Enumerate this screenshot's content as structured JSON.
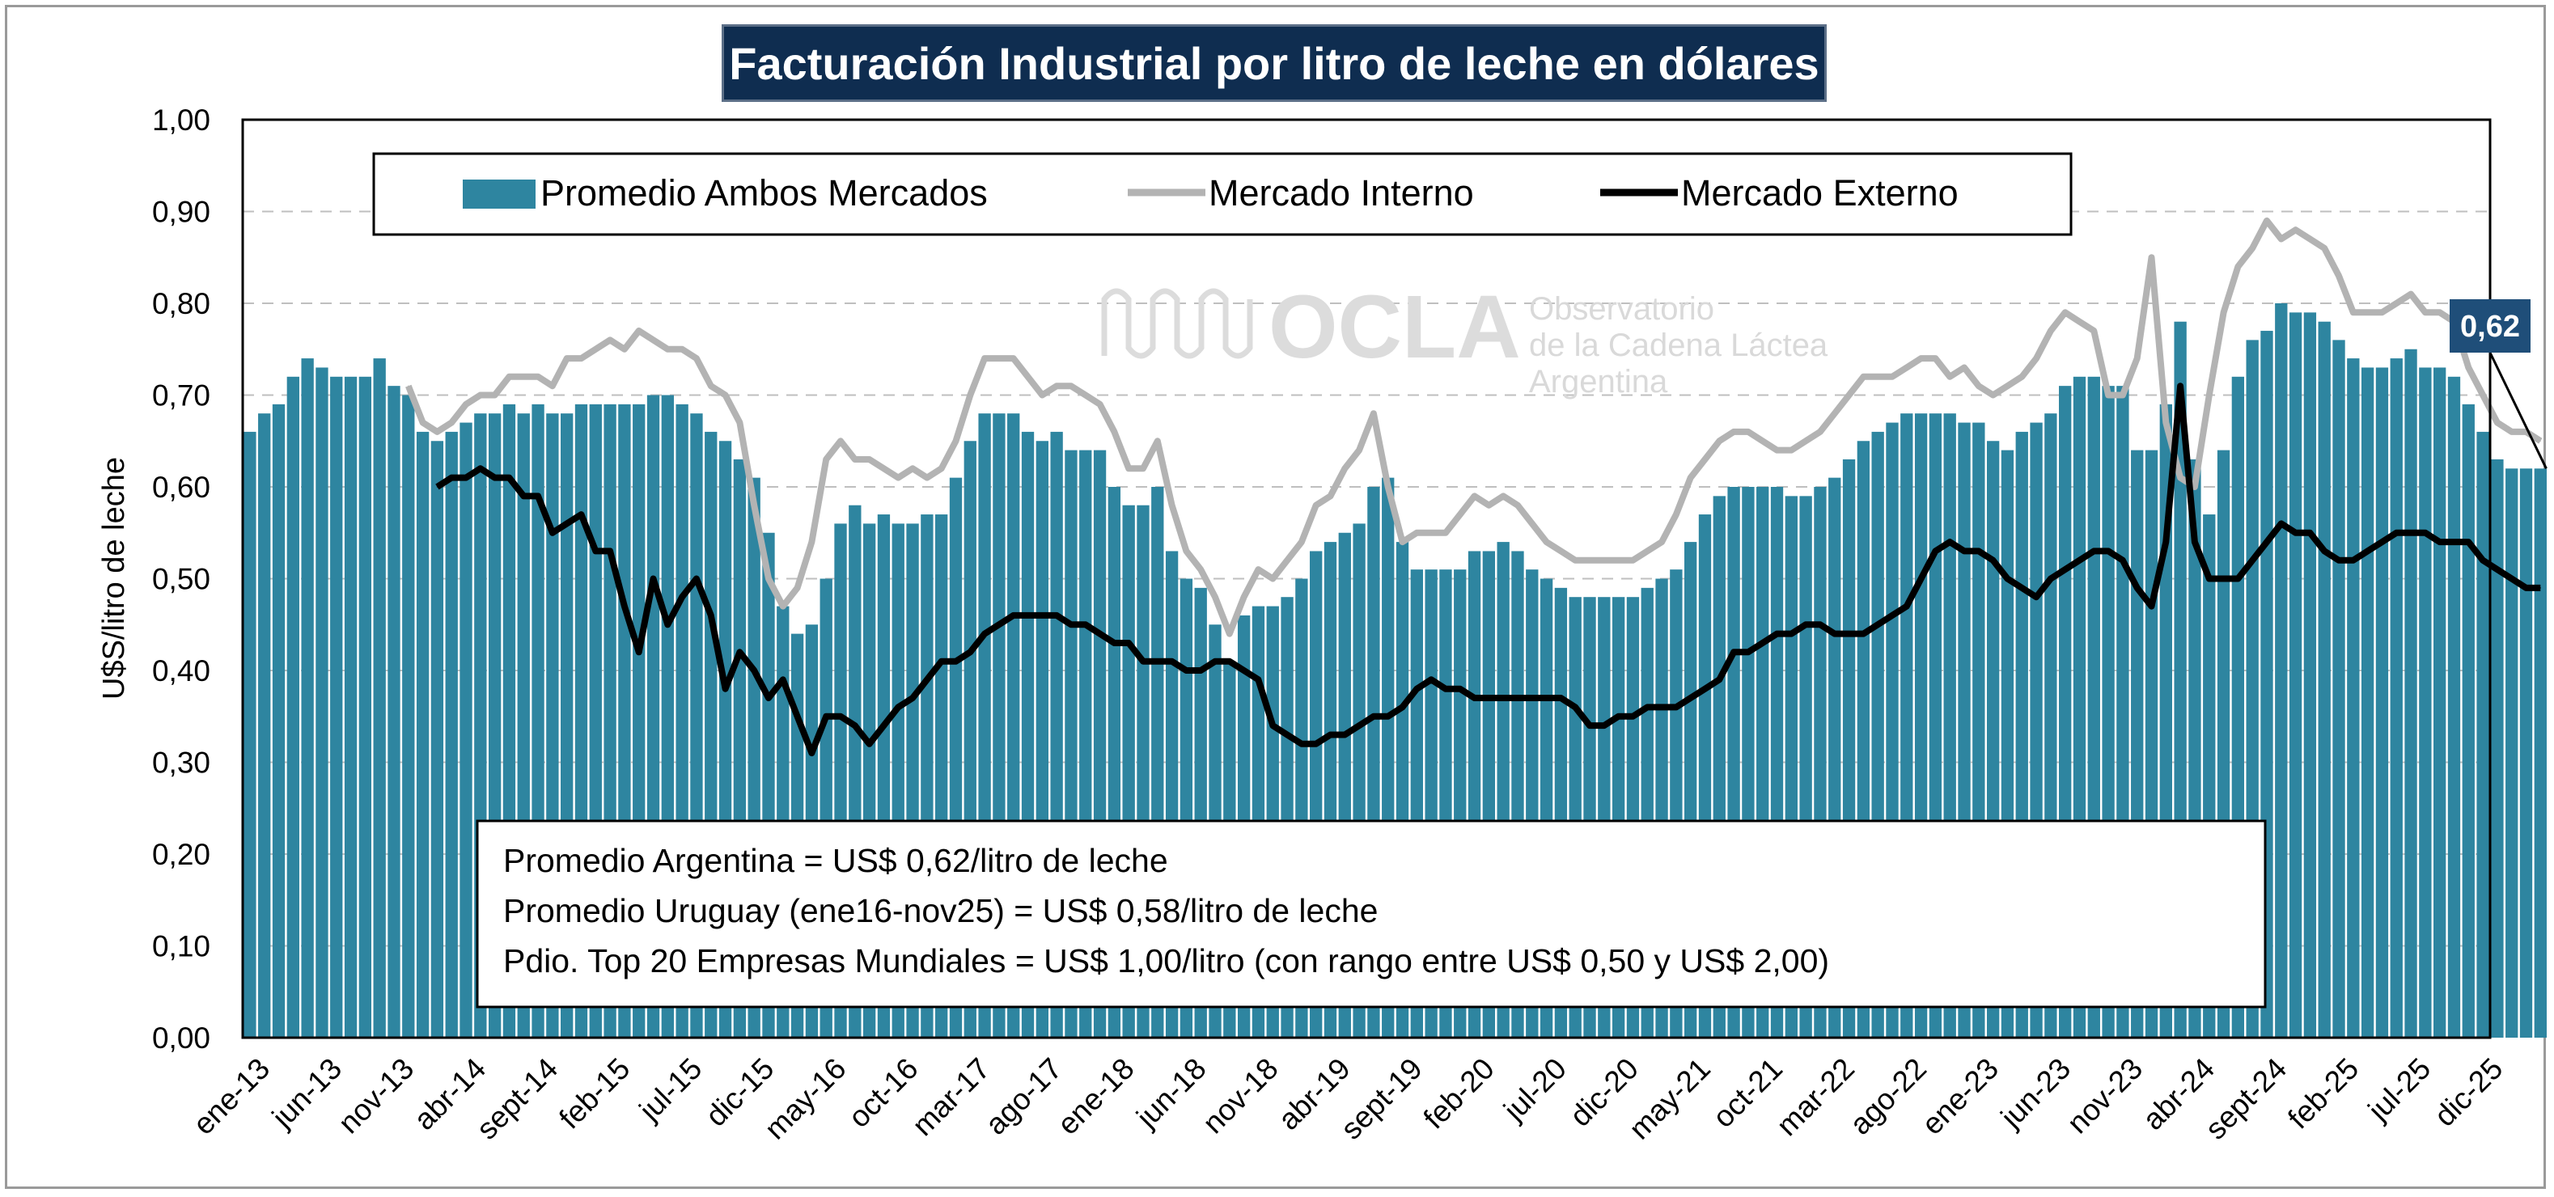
{
  "title": "Facturación Industrial por litro de leche en dólares",
  "watermark": {
    "brand": "OCLA",
    "line1": "Observatorio",
    "line2": "de la Cadena Láctea",
    "line3": "Argentina"
  },
  "info_box": {
    "line1": "Promedio Argentina = US$ 0,62/litro de leche",
    "line2": "Promedio Uruguay (ene16-nov25) = US$ 0,58/litro de leche",
    "line3": "Pdio. Top 20 Empresas Mundiales = US$ 1,00/litro (con rango entre US$ 0,50 y US$ 2,00)"
  },
  "last_value_label": "0,62",
  "colors": {
    "bars": "#2e85a0",
    "interno": "#b3b3b3",
    "externo": "#000000",
    "title_bg": "#0f2d50",
    "label_bg": "#1f4e79"
  },
  "chart_data": {
    "type": "bar",
    "title": "Facturación Industrial por litro de leche en dólares",
    "xlabel": "",
    "ylabel": "U$S/litro de leche",
    "ylim": [
      0,
      1.0
    ],
    "y_ticks": [
      "0,00",
      "0,10",
      "0,20",
      "0,30",
      "0,40",
      "0,50",
      "0,60",
      "0,70",
      "0,80",
      "0,90",
      "1,00"
    ],
    "x_tick_labels": [
      "ene-13",
      "jun-13",
      "nov-13",
      "abr-14",
      "sept-14",
      "feb-15",
      "jul-15",
      "dic-15",
      "may-16",
      "oct-16",
      "mar-17",
      "ago-17",
      "ene-18",
      "jun-18",
      "nov-18",
      "abr-19",
      "sept-19",
      "feb-20",
      "jul-20",
      "dic-20",
      "may-21",
      "oct-21",
      "mar-22",
      "ago-22",
      "ene-23",
      "jun-23",
      "nov-23",
      "abr-24",
      "sept-24",
      "feb-25",
      "jul-25",
      "dic-25"
    ],
    "x_start": "ene-13",
    "x_end": "dic-25",
    "grid": "horizontal dashed",
    "legend_position": "top",
    "series": [
      {
        "name": "Promedio Ambos Mercados",
        "kind": "bar",
        "values": [
          0.66,
          0.68,
          0.69,
          0.72,
          0.74,
          0.73,
          0.72,
          0.72,
          0.72,
          0.74,
          0.71,
          0.7,
          0.66,
          0.65,
          0.66,
          0.67,
          0.68,
          0.68,
          0.69,
          0.68,
          0.69,
          0.68,
          0.68,
          0.69,
          0.69,
          0.69,
          0.69,
          0.69,
          0.7,
          0.7,
          0.69,
          0.68,
          0.66,
          0.65,
          0.63,
          0.61,
          0.55,
          0.47,
          0.44,
          0.45,
          0.5,
          0.56,
          0.58,
          0.56,
          0.57,
          0.56,
          0.56,
          0.57,
          0.57,
          0.61,
          0.65,
          0.68,
          0.68,
          0.68,
          0.66,
          0.65,
          0.66,
          0.64,
          0.64,
          0.64,
          0.6,
          0.58,
          0.58,
          0.6,
          0.53,
          0.5,
          0.49,
          0.45,
          0.41,
          0.46,
          0.47,
          0.47,
          0.48,
          0.5,
          0.53,
          0.54,
          0.55,
          0.56,
          0.6,
          0.61,
          0.54,
          0.51,
          0.51,
          0.51,
          0.51,
          0.53,
          0.53,
          0.54,
          0.53,
          0.51,
          0.5,
          0.49,
          0.48,
          0.48,
          0.48,
          0.48,
          0.48,
          0.49,
          0.5,
          0.51,
          0.54,
          0.57,
          0.59,
          0.6,
          0.6,
          0.6,
          0.6,
          0.59,
          0.59,
          0.6,
          0.61,
          0.63,
          0.65,
          0.66,
          0.67,
          0.68,
          0.68,
          0.68,
          0.68,
          0.67,
          0.67,
          0.65,
          0.64,
          0.66,
          0.67,
          0.68,
          0.71,
          0.72,
          0.72,
          0.71,
          0.71,
          0.64,
          0.64,
          0.69,
          0.78,
          0.63,
          0.57,
          0.64,
          0.72,
          0.76,
          0.77,
          0.8,
          0.79,
          0.79,
          0.78,
          0.76,
          0.74,
          0.73,
          0.73,
          0.74,
          0.75,
          0.73,
          0.73,
          0.72,
          0.69,
          0.66,
          0.63,
          0.62,
          0.62,
          0.62
        ]
      },
      {
        "name": "Mercado Interno",
        "kind": "line",
        "start": "dic-13",
        "values": [
          0.71,
          0.67,
          0.66,
          0.67,
          0.69,
          0.7,
          0.7,
          0.72,
          0.72,
          0.72,
          0.71,
          0.74,
          0.74,
          0.75,
          0.76,
          0.75,
          0.77,
          0.76,
          0.75,
          0.75,
          0.74,
          0.71,
          0.7,
          0.67,
          0.58,
          0.5,
          0.47,
          0.49,
          0.54,
          0.63,
          0.65,
          0.63,
          0.63,
          0.62,
          0.61,
          0.62,
          0.61,
          0.62,
          0.65,
          0.7,
          0.74,
          0.74,
          0.74,
          0.72,
          0.7,
          0.71,
          0.71,
          0.7,
          0.69,
          0.66,
          0.62,
          0.62,
          0.65,
          0.58,
          0.53,
          0.51,
          0.48,
          0.44,
          0.48,
          0.51,
          0.5,
          0.52,
          0.54,
          0.58,
          0.59,
          0.62,
          0.64,
          0.68,
          0.6,
          0.54,
          0.55,
          0.55,
          0.55,
          0.57,
          0.59,
          0.58,
          0.59,
          0.58,
          0.56,
          0.54,
          0.53,
          0.52,
          0.52,
          0.52,
          0.52,
          0.52,
          0.53,
          0.54,
          0.57,
          0.61,
          0.63,
          0.65,
          0.66,
          0.66,
          0.65,
          0.64,
          0.64,
          0.65,
          0.66,
          0.68,
          0.7,
          0.72,
          0.72,
          0.72,
          0.73,
          0.74,
          0.74,
          0.72,
          0.73,
          0.71,
          0.7,
          0.71,
          0.72,
          0.74,
          0.77,
          0.79,
          0.78,
          0.77,
          0.7,
          0.7,
          0.74,
          0.85,
          0.67,
          0.61,
          0.6,
          0.7,
          0.79,
          0.84,
          0.86,
          0.89,
          0.87,
          0.88,
          0.87,
          0.86,
          0.83,
          0.79,
          0.79,
          0.79,
          0.8,
          0.81,
          0.79,
          0.79,
          0.78,
          0.73,
          0.7,
          0.67,
          0.66,
          0.66,
          0.65
        ]
      },
      {
        "name": "Mercado Externo",
        "kind": "line",
        "start": "feb-14",
        "values": [
          0.6,
          0.61,
          0.61,
          0.62,
          0.61,
          0.61,
          0.59,
          0.59,
          0.55,
          0.56,
          0.57,
          0.53,
          0.53,
          0.47,
          0.42,
          0.5,
          0.45,
          0.48,
          0.5,
          0.46,
          0.38,
          0.42,
          0.4,
          0.37,
          0.39,
          0.35,
          0.31,
          0.35,
          0.35,
          0.34,
          0.32,
          0.34,
          0.36,
          0.37,
          0.39,
          0.41,
          0.41,
          0.42,
          0.44,
          0.45,
          0.46,
          0.46,
          0.46,
          0.46,
          0.45,
          0.45,
          0.44,
          0.43,
          0.43,
          0.41,
          0.41,
          0.41,
          0.4,
          0.4,
          0.41,
          0.41,
          0.4,
          0.39,
          0.34,
          0.33,
          0.32,
          0.32,
          0.33,
          0.33,
          0.34,
          0.35,
          0.35,
          0.36,
          0.38,
          0.39,
          0.38,
          0.38,
          0.37,
          0.37,
          0.37,
          0.37,
          0.37,
          0.37,
          0.37,
          0.36,
          0.34,
          0.34,
          0.35,
          0.35,
          0.36,
          0.36,
          0.36,
          0.37,
          0.38,
          0.39,
          0.42,
          0.42,
          0.43,
          0.44,
          0.44,
          0.45,
          0.45,
          0.44,
          0.44,
          0.44,
          0.45,
          0.46,
          0.47,
          0.5,
          0.53,
          0.54,
          0.53,
          0.53,
          0.52,
          0.5,
          0.49,
          0.48,
          0.5,
          0.51,
          0.52,
          0.53,
          0.53,
          0.52,
          0.49,
          0.47,
          0.54,
          0.71,
          0.54,
          0.5,
          0.5,
          0.5,
          0.52,
          0.54,
          0.56,
          0.55,
          0.55,
          0.53,
          0.52,
          0.52,
          0.53,
          0.54,
          0.55,
          0.55,
          0.55,
          0.54,
          0.54,
          0.54,
          0.52,
          0.51,
          0.5,
          0.49,
          0.49
        ]
      }
    ]
  }
}
